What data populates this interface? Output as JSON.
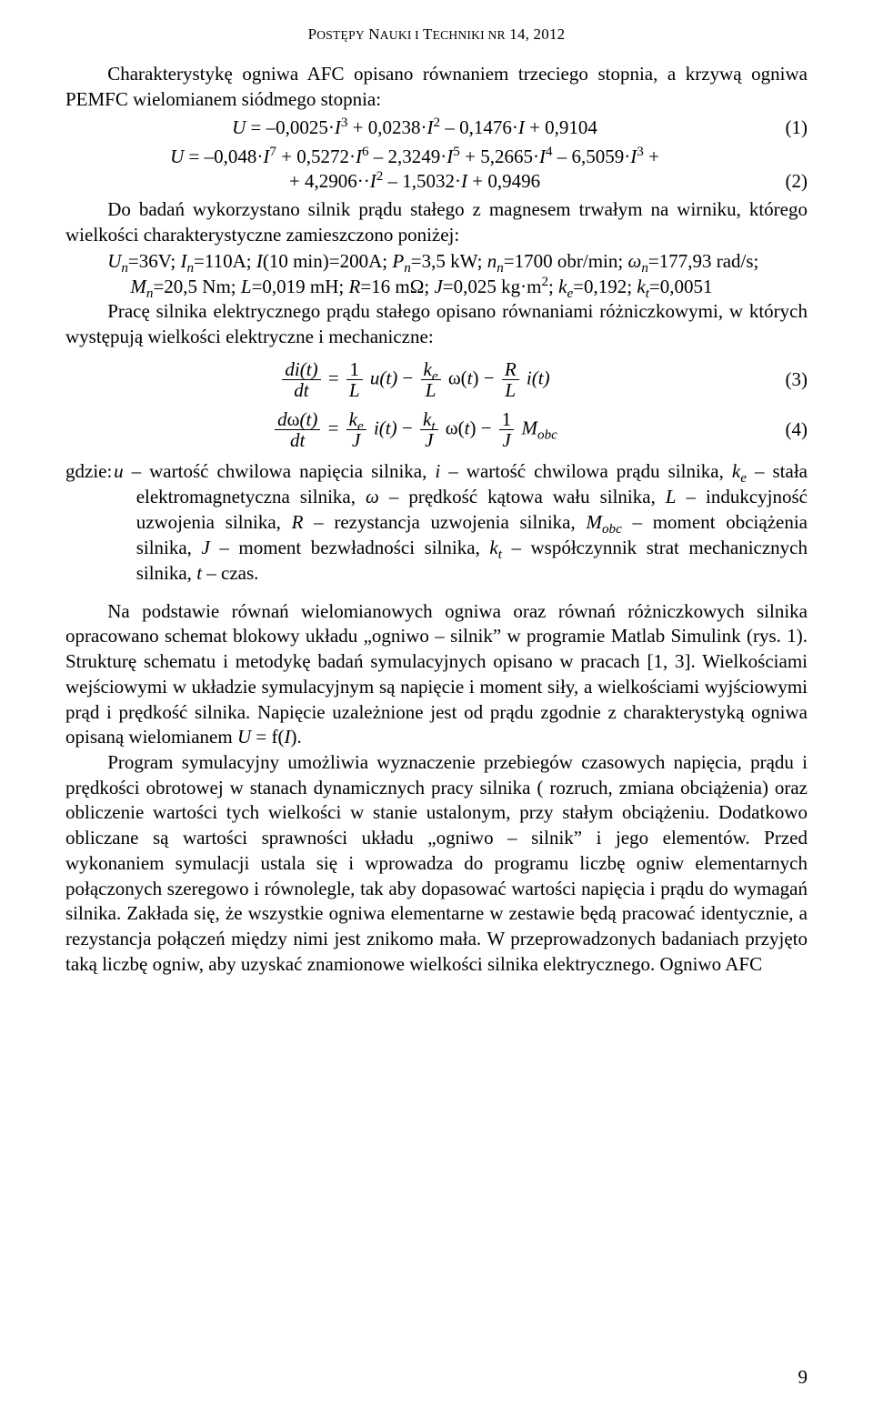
{
  "header": {
    "running_head": "Postępy Nauki i Techniki nr 14, 2012"
  },
  "para1": "Charakterystykę ogniwa AFC opisano równaniem trzeciego stopnia, a krzywą ogniwa PEMFC wielomianem siódmego stopnia:",
  "eq1": {
    "text": "U = –0,0025·I³ + 0,0238·I² – 0,1476·I + 0,9104",
    "num": "(1)"
  },
  "eq2": {
    "line1": "U = –0,048·I⁷ + 0,5272·I⁶ – 2,3249·I⁵ + 5,2665·I⁴ – 6,5059·I³ +",
    "line2": "+ 4,2906··I² – 1,5032·I + 0,9496",
    "num": "(2)"
  },
  "para2": "Do badań wykorzystano silnik prądu stałego z magnesem trwałym na wirniku, którego wielkości charakterystyczne zamieszczono poniżej:",
  "params1": "Uₙ=36V; Iₙ=110A; I(10 min)=200A; Pₙ=3,5 kW; nₙ=1700 obr/min; ωₙ=177,93 rad/s;",
  "params2": "Mₙ=20,5 Nm; L=0,019 mH; R=16 mΩ; J=0,025 kg·m²; kₑ=0,192; kₜ=0,0051",
  "para3": "Pracę silnika elektrycznego prądu stałego opisano równaniami różniczkowymi, w których występują wielkości elektryczne i mechaniczne:",
  "eq3": {
    "lhs_num": "di(t)",
    "lhs_den": "dt",
    "rhs_f1n": "1",
    "rhs_f1d": "L",
    "rhs_t1": "u(t)",
    "rhs_f2n": "kₑ",
    "rhs_f2d": "L",
    "rhs_t2": "ω(t)",
    "rhs_f3n": "R",
    "rhs_f3d": "L",
    "rhs_t3": "i(t)",
    "num": "(3)"
  },
  "eq4": {
    "lhs_num": "dω(t)",
    "lhs_den": "dt",
    "rhs_f1n": "kₑ",
    "rhs_f1d": "J",
    "rhs_t1": "i(t)",
    "rhs_f2n": "kₜ",
    "rhs_f2d": "J",
    "rhs_t2": "ω(t)",
    "rhs_f3n": "1",
    "rhs_f3d": "J",
    "rhs_t3": "M_obc",
    "num": "(4)"
  },
  "gdzie_lead": "gdzie:",
  "gdzie_body": "u – wartość chwilowa napięcia silnika, i – wartość chwilowa prądu silnika, kₑ – stała elektromagnetyczna silnika, ω – prędkość kątowa wału silnika, L – indukcyjność uzwojenia silnika, R – rezystancja uzwojenia silnika, M_obc – moment obciążenia silnika, J – moment bezwładności silnika, kₜ – współczynnik strat mechanicznych silnika, t – czas.",
  "para4": "Na podstawie równań wielomianowych ogniwa oraz równań różniczkowych silnika opracowano schemat blokowy układu „ogniwo – silnik” w programie Matlab Simulink (rys. 1). Strukturę schematu i metodykę badań symulacyjnych opisano w pracach [1, 3]. Wielkościami wejściowymi w układzie symulacyjnym są napięcie i moment siły, a wielkościami wyjściowymi prąd i prędkość silnika. Napięcie uzależnione jest od prądu zgodnie z charakterystyką ogniwa opisaną wielomianem U = f(I).",
  "para5": "Program symulacyjny umożliwia wyznaczenie przebiegów czasowych napięcia, prądu i prędkości obrotowej w stanach dynamicznych pracy silnika ( rozruch, zmiana obciążenia) oraz obliczenie wartości tych wielkości w stanie ustalonym, przy stałym obciążeniu. Dodatkowo obliczane są wartości sprawności układu „ogniwo – silnik” i jego elementów. Przed wykonaniem symulacji ustala się i wprowadza do programu liczbę ogniw elementarnych połączonych szeregowo i równolegle, tak aby dopasować wartości napięcia i prądu do wymagań silnika. Zakłada się, że wszystkie ogniwa elementarne w zestawie będą pracować identycznie, a rezystancja połączeń między nimi jest znikomo mała. W przeprowadzonych badaniach przyjęto taką liczbę ogniw, aby uzyskać znamionowe wielkości silnika elektrycznego. Ogniwo AFC",
  "page_number": "9",
  "style": {
    "body_font_size_pt": 16,
    "font_family": "Times New Roman",
    "text_color": "#000000",
    "background": "#ffffff"
  }
}
